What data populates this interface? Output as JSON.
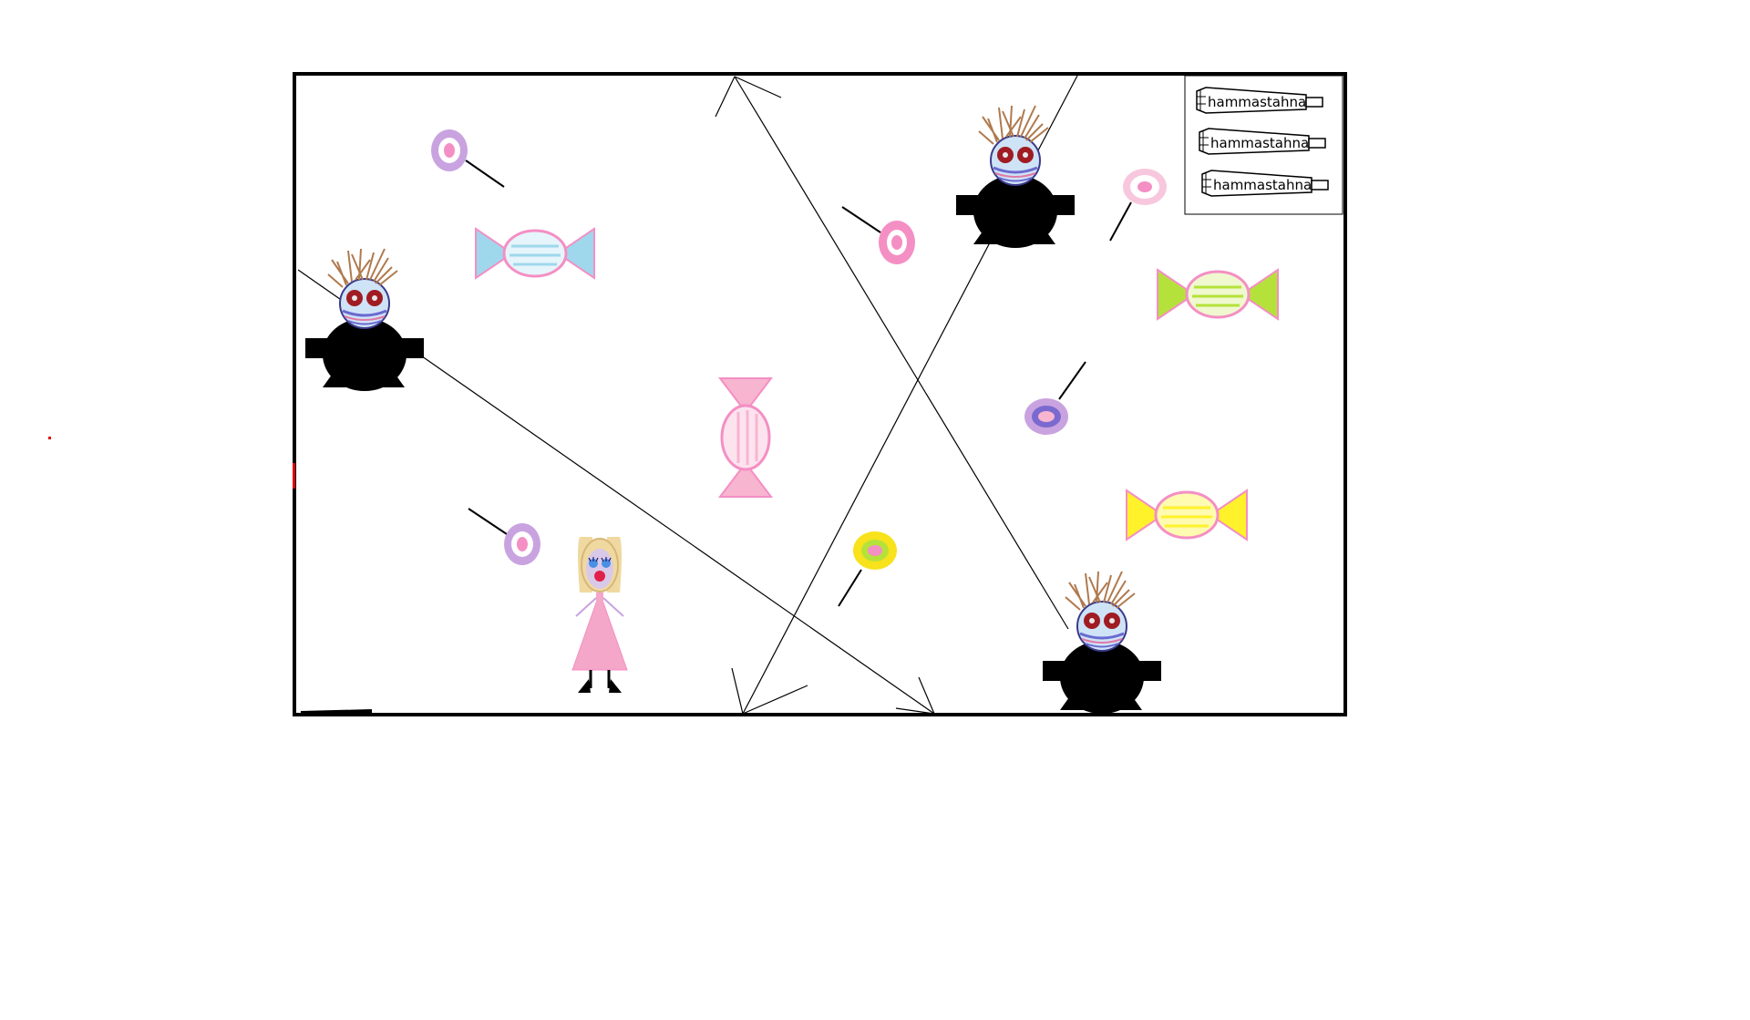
{
  "game": {
    "lives_panel": {
      "item_label": "hammastahna",
      "items": [
        {
          "label": "hammastahna"
        },
        {
          "label": "hammastahna"
        },
        {
          "label": "hammastahna"
        }
      ]
    },
    "colors": {
      "frame": "#000000",
      "enemy_body": "#000000",
      "enemy_hair": "#b07a4e",
      "enemy_eyes": "#a01c22",
      "player_dress": "#f4a7c8",
      "player_hair": "#f0d9a0",
      "candy_blue": "#9fd8ec",
      "candy_pink": "#f7b5cf",
      "candy_green": "#b5e23a",
      "candy_yellow": "#fff22b",
      "lollipop_pink": "#f48fc4",
      "lollipop_violet": "#c9a3e0",
      "lollipop_yellow": "#f7e21c"
    },
    "icons": {
      "enemy": "germ-monster-icon",
      "player": "girl-character-icon",
      "candy": "wrapped-candy-icon",
      "lollipop": "lollipop-icon",
      "toothpaste": "toothpaste-tube-icon"
    }
  }
}
